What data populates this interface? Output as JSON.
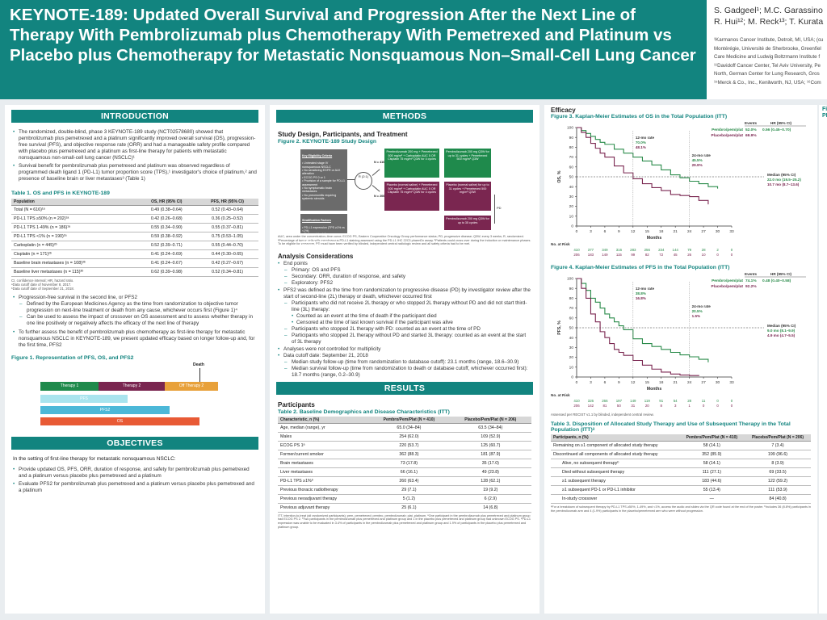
{
  "header": {
    "title": "KEYNOTE-189: Updated Overall Survival and Progression After the Next Line of Therapy With Pembrolizumab plus Chemotherapy With Pemetrexed and Platinum vs Placebo plus Chemotherapy for Metastatic Nonsquamous Non–Small-Cell Lung Cancer",
    "authors_line1": "S. Gadgeel¹; M.C. Garassino",
    "authors_line2": "R. Hui¹²; M. Reck¹³; T. Kurata",
    "affiliations": [
      "¹Karmanos Cancer Institute, Detroit, MI, USA; (cu",
      "Montérégie, Université de Sherbrooke, Greenfiel",
      "Care Medicine and Ludwig Boltzmann Institute f",
      "¹¹Davidoff Cancer Center, Tel Aviv University, Pe",
      "North, German Center for Lung Research, Gros",
      "¹⁵Merck & Co., Inc., Kenilworth, NJ, USA; ¹⁶Com"
    ],
    "colors": {
      "brand": "#12847f",
      "pembro": "#2a8b4a",
      "placebo": "#7a2650"
    }
  },
  "intro": {
    "heading": "INTRODUCTION",
    "bullets": [
      "The randomized, double-blind, phase 3 KEYNOTE-189 study (NCT02578680) showed that pembrolizumab plus pemetrexed and a platinum significantly improved overall survival (OS), progression-free survival (PFS), and objective response rate (ORR) and had a manageable safety profile compared with placebo plus pemetrexed and a platinum as first-line therapy for patients with metastatic nonsquamous non-small-cell lung cancer (NSCLC)¹",
      "Survival benefit for pembrolizumab plus pemetrexed and platinum was observed regardless of programmed death ligand 1 (PD-L1) tumor proportion score (TPS),¹ investigator's choice of platinum,² and presence of baseline brain or liver metastases³ (Table 1)"
    ],
    "table1_caption": "Table 1. OS and PFS in KEYNOTE-189",
    "table1_headers": [
      "Population",
      "OS, HR (95% CI)",
      "PFS, HR (95% CI)"
    ],
    "table1_rows": [
      [
        "Total (N = 616)¹ᵃ",
        "0.49 (0.38–0.64)",
        "0.52 (0.43–0.64)"
      ],
      [
        "PD-L1 TPS ≥50% (n = 202)¹ᵃ",
        "0.42 (0.26–0.68)",
        "0.36 (0.25–0.52)"
      ],
      [
        "PD-L1 TPS 1-49% (n = 186)¹ᵃ",
        "0.55 (0.34–0.90)",
        "0.55 (0.37–0.81)"
      ],
      [
        "PD-L1 TPS <1% (n = 190)¹ᵃ",
        "0.59 (0.38–0.92)",
        "0.75 (0.53–1.05)"
      ],
      [
        "Carboplatin (n = 445)²ᵇ",
        "0.52 (0.39–0.71)",
        "0.55 (0.44–0.70)"
      ],
      [
        "Cisplatin (n = 171)²ᵇ",
        "0.41 (0.24–0.69)",
        "0.44 (0.30–0.65)"
      ],
      [
        "Baseline brain metastases (n = 108)³ᵇ",
        "0.41 (0.24–0.67)",
        "0.42 (0.27–0.67)"
      ],
      [
        "Baseline liver metastases (n = 115)³ᵇ",
        "0.62 (0.39–0.98)",
        "0.52 (0.34–0.81)"
      ]
    ],
    "table1_notes": [
      "CI, confidence interval; HR, hazard ratio.",
      "ᵃData cutoff date of November 8, 2017.",
      "ᵇData cutoff date of September 21, 2018."
    ],
    "pfs2_bullet": "Progression-free survival in the second line, or PFS2",
    "pfs2_dashes": [
      "Defined by the European Medicines Agency as the time from randomization to objective tumor progression on next-line treatment or death from any cause, whichever occurs first (Figure 1)⁴",
      "Can be used to assess the impact of crossover on OS assessment and to assess whether therapy in one line positively or negatively affects the efficacy of the next line of therapy"
    ],
    "further_bullet": "To further assess the benefit of pembrolizumab plus chemotherapy as first-line therapy for metastatic nonsquamous NSCLC in KEYNOTE-189, we present updated efficacy based on longer follow-up and, for the first time, PFS2",
    "fig1_caption": "Figure 1. Representation of PFS, OS, and PFS2",
    "fig1_labels": {
      "death": "Death",
      "therapy1": "Therapy 1",
      "therapy2": "Therapy 2",
      "therapy3": "Off Therapy 2",
      "pfs": "PFS",
      "pfs2": "PFS2",
      "os": "OS"
    }
  },
  "objectives": {
    "heading": "OBJECTIVES",
    "lead": "In the setting of first-line therapy for metastatic nonsquamous NSCLC:",
    "bullets": [
      "Provide updated OS, PFS, ORR, duration of response, and safety for pembrolizumab plus pemetrexed and a platinum versus placebo plus pemetrexed and a platinum",
      "Evaluate PFS2 for pembrolizumab plus pemetrexed and a platinum versus placebo plus pemetrexed and a platinum"
    ]
  },
  "methods": {
    "heading": "METHODS",
    "design_heading": "Study Design, Participants, and Treatment",
    "fig2_caption": "Figure 2. KEYNOTE-189 Study Design",
    "design_boxes": {
      "eligibility": "Key Eligibility Criteria",
      "eligibility_items": "• Untreated stage IV nonsquamous NSCLC\n• No sensitizing EGFR or ALK alteration\n• ECOG PS 0 or 1\n• Provision of a sample for PD-L1 assessment\n• No symptomatic brain metastases\n• No pneumonitis requiring systemic steroids",
      "stratification": "Stratification Factors",
      "stratification_items": "• PD-L1 expression (TPS ≥1% vs <1%)\n• Platinum (cisplatin vs carboplatin)\n• Smoking history (never vs former/current)",
      "randomize": "R (2:1)",
      "n_top": "N = 410",
      "n_bottom": "N = 206",
      "arm1_induction": "Pembrolizumab 200 mg + Pemetrexed 500 mg/m² + Carboplatin AUC 5 OR Cisplatin 75 mg/m² Q3W for 4 cycles",
      "arm1_maint": "Pembrolizumab 200 mg Q3W for up to 31 cycles + Pemetrexed 500 mg/m² Q3W",
      "arm2_induction": "Placebo (normal saline) + Pemetrexed 500 mg/m² + Carboplatin AUC 5 OR Cisplatin 75 mg/m² Q3W for 4 cycles",
      "arm2_maint": "Placebo (normal saline) for up to 31 cycles + Pemetrexed 500 mg/m² Q3W",
      "crossover": "Pembrolizumab 200 mg Q3W for up to 35 cycles",
      "pd_label": "PD"
    },
    "fig2_notes": "AUC, area under the concentration–time curve; ECOG PS, Eastern Cooperative Oncology Group performance status; PD, progressive disease; Q3W, every 3 weeks; R, randomized. ᵃPercentage of tumor cells with membranous PD-L1 staining assessed using the PD-L1 IHC 22C3 pharmDx assay. ᵇPatients could cross over during the induction or maintenance phases. To be eligible for crossover, PD must have been verified by blinded, independent central radiologic review and all safety criteria had to be met.",
    "analysis_heading": "Analysis Considerations",
    "endpoints_bullet": "End points",
    "endpoints": [
      "Primary: OS and PFS",
      "Secondary: ORR, duration of response, and safety",
      "Exploratory: PFS2"
    ],
    "pfs2_def": "PFS2 was defined as the time from randomization to progressive disease (PD) by investigator review after the start of second-line (2L) therapy or death, whichever occurred first",
    "pfs2_sub": [
      "Participants who did not receive 2L therapy or who stopped 2L therapy without PD and did not start third-line (3L) therapy:"
    ],
    "pfs2_sub2": [
      "Counted as an event at the time of death if the participant died",
      "Censored at the time of last known survival if the participant was alive"
    ],
    "pfs2_sub3": [
      "Participants who stopped 2L therapy with PD: counted as an event at the time of PD",
      "Participants who stopped 2L therapy without PD and started 3L therapy: counted as an event at the start of 3L therapy"
    ],
    "multiplicity": "Analyses were not controlled for multiplicity",
    "cutoff": "Data cutoff date: September 21, 2018",
    "cutoff_sub": [
      "Median study follow-up (time from randomization to database cutoff): 23.1 months (range, 18.6–30.9)",
      "Median survival follow-up (time from randomization to death or database cutoff, whichever occurred first): 18.7 months (range, 0.2–30.9)"
    ]
  },
  "results": {
    "heading": "RESULTS",
    "participants_heading": "Participants",
    "table2_caption": "Table 2. Baseline Demographics and Disease Characteristics (ITT)",
    "table2_headers": [
      "Characteristic, n (%)",
      "Pembro/Pem/Plat (N = 410)",
      "Placebo/Pem/Plat (N = 206)"
    ],
    "table2_rows": [
      [
        "Age, median (range), yr",
        "65.0 (34–84)",
        "63.5 (34–84)"
      ],
      [
        "Males",
        "254 (62.0)",
        "109 (52.9)"
      ],
      [
        "ECOG PS 1ᵃ",
        "220 (53.7)",
        "125 (60.7)"
      ],
      [
        "Former/current smoker",
        "362 (88.3)",
        "181 (87.9)"
      ],
      [
        "Brain metastases",
        "73 (17.8)",
        "35 (17.0)"
      ],
      [
        "Liver metastases",
        "66 (16.1)",
        "49 (23.8)"
      ],
      [
        "PD-L1 TPS ≥1%ᵇ",
        "260 (63.4)",
        "128 (62.1)"
      ],
      [
        "Previous thoracic radiotherapy",
        "29 (7.1)",
        "19 (9.2)"
      ],
      [
        "Previous neoadjuvant therapy",
        "5 (1.2)",
        "6 (2.9)"
      ],
      [
        "Previous adjuvant therapy",
        "25 (6.1)",
        "14 (6.8)"
      ]
    ],
    "table2_notes": "ITT, intention-to-treat (all randomized participants); pem, pemetrexed; pembro, pembrolizumab; plat, platinum. ᵃOne participant in the pembrolizumab plus pemetrexed and platinum group had ECOG PS 2. ᵇTwo participants in the pembrolizumab plus pemetrexed and platinum group and 1 in the placebo plus pemetrexed and platinum group had unknown ECOG PS. ᶜPD-L1 expression was unable to be evaluated in 3.4% of participants in the pembrolizumab plus pemetrexed and platinum group and 1.9% of participants in the placebo plus pemetrexed and platinum group."
  },
  "efficacy": {
    "heading": "Efficacy",
    "fig3_caption": "Figure 3. Kaplan-Meier Estimates of OS in the Total Population (ITT)",
    "fig4_caption": "Figure 4. Kaplan-Meier Estimates of PFS in the Total Population (ITT)",
    "fig4_note": "Assessed per RECIST v1.1 by blinded, independent central review.",
    "table3_caption": "Table 3. Disposition of Allocated Study Therapy and Use of Subsequent Therapy in the Total Population (ITT)ᵃ",
    "table3_headers": [
      "Participants, n (%)",
      "Pembro/Pem/Plat (N = 410)",
      "Placebo/Pem/Plat (N = 206)"
    ],
    "table3_rows": [
      [
        "Remaining on ≥1 component of allocated study therapy",
        "58 (14.1)",
        "7 (3.4)"
      ],
      [
        "Discontinued all components of allocated study therapy",
        "352 (85.9)",
        "199 (96.6)"
      ],
      [
        "Alive, no subsequent therapyᵇ",
        "58 (14.1)",
        "8 (3.9)"
      ],
      [
        "Died without subsequent therapy",
        "111 (27.1)",
        "69 (33.5)"
      ],
      [
        "≥1 subsequent therapy",
        "183 (44.6)",
        "122 (59.2)"
      ],
      [
        "≥1 subsequent PD-1 or PD-L1 inhibitor",
        "55 (13.4)",
        "111 (53.9)"
      ],
      [
        "In-study crossover",
        "—",
        "84 (40.8)"
      ]
    ],
    "table3_notes": "ᵃFor a breakdown of subsequent therapy by PD-L1 TPS ≥50%, 1-49%, and <1%, access the audio and slides via the QR code found at the end of the poster. ᵇIncludes 36 (8.8%) participants in the pembrolizumab arm and 4 (1.9%) participants in the placebo/pemetrexed arm who were without progression.",
    "right_partial": [
      "Fi",
      "PF"
    ]
  },
  "chart_data": [
    {
      "type": "line",
      "title": "Figure 3. Kaplan-Meier Estimates of OS in the Total Population (ITT)",
      "xlabel": "Months",
      "ylabel": "OS, %",
      "xlim": [
        0,
        33
      ],
      "ylim": [
        0,
        100
      ],
      "xticks": [
        0,
        3,
        6,
        9,
        12,
        15,
        18,
        21,
        24,
        27,
        30,
        33
      ],
      "yticks": [
        0,
        10,
        20,
        30,
        40,
        50,
        60,
        70,
        80,
        90,
        100
      ],
      "legend_header": [
        "Events",
        "HR (95% CI)"
      ],
      "series": [
        {
          "name": "Pembro/pem/plat",
          "events": "52.0%",
          "hr": "0.56 (0.45–0.70)",
          "x": [
            0,
            1,
            2,
            3,
            4,
            5,
            6,
            8,
            10,
            12,
            14,
            16,
            18,
            20,
            22,
            24,
            26,
            28,
            30
          ],
          "y": [
            100,
            97,
            94,
            91,
            88,
            85,
            83,
            78,
            74,
            70,
            66,
            62,
            57,
            52,
            49,
            45.5,
            43,
            40,
            38
          ]
        },
        {
          "name": "Placebo/pem/plat",
          "events": "69.9%",
          "hr": "",
          "x": [
            0,
            1,
            2,
            3,
            4,
            5,
            6,
            8,
            10,
            12,
            14,
            16,
            18,
            20,
            22,
            24,
            26,
            28
          ],
          "y": [
            100,
            95,
            90,
            84,
            79,
            74,
            70,
            61,
            54,
            48,
            43,
            39,
            36,
            32,
            31,
            29.9,
            26,
            22
          ]
        }
      ],
      "annotations": [
        "12-mo rate",
        "70.0%",
        "48.1%",
        "24-mo rate",
        "45.5%",
        "29.9%",
        "Median (95% CI)",
        "22.0 mo (19.5–25.2)",
        "10.7 mo (8.7–13.6)"
      ],
      "at_risk_label": "No. at Risk",
      "at_risk": [
        [
          "410",
          "377",
          "349",
          "316",
          "283",
          "256",
          "234",
          "144",
          "79",
          "28",
          "2",
          "0"
        ],
        [
          "206",
          "183",
          "149",
          "115",
          "99",
          "82",
          "72",
          "45",
          "26",
          "10",
          "0",
          "0"
        ]
      ]
    },
    {
      "type": "line",
      "title": "Figure 4. Kaplan-Meier Estimates of PFS in the Total Population (ITT)",
      "xlabel": "Months",
      "ylabel": "PFS, %",
      "xlim": [
        0,
        33
      ],
      "ylim": [
        0,
        100
      ],
      "xticks": [
        0,
        3,
        6,
        9,
        12,
        15,
        18,
        21,
        24,
        27,
        30,
        33
      ],
      "yticks": [
        0,
        10,
        20,
        30,
        40,
        50,
        60,
        70,
        80,
        90,
        100
      ],
      "legend_header": [
        "Events",
        "HR (95% CI)"
      ],
      "series": [
        {
          "name": "Pembro/pem/plat",
          "events": "74.1%",
          "hr": "0.48 (0.40–0.58)",
          "x": [
            0,
            1,
            2,
            3,
            4,
            5,
            6,
            7,
            8,
            9,
            10,
            12,
            14,
            16,
            18,
            20,
            22,
            24,
            26,
            28
          ],
          "y": [
            100,
            95,
            88,
            80,
            76,
            70,
            64,
            60,
            56,
            52,
            48,
            38.8,
            34,
            31,
            28,
            25,
            22.5,
            20.5,
            18,
            15
          ]
        },
        {
          "name": "Placebo/pem/plat",
          "events": "92.2%",
          "hr": "",
          "x": [
            0,
            1,
            2,
            3,
            4,
            5,
            6,
            7,
            8,
            9,
            10,
            12,
            14,
            16,
            18,
            20,
            22,
            24,
            26
          ],
          "y": [
            100,
            90,
            80,
            64,
            56,
            46,
            40,
            34,
            28,
            25,
            22,
            16.8,
            12,
            8,
            5,
            3,
            2,
            1.5,
            1
          ]
        }
      ],
      "annotations": [
        "12-mo rate",
        "38.8%",
        "16.8%",
        "24-mo rate",
        "20.5%",
        "1.5%",
        "Median (95% CI)",
        "9.0 mo (8.1–9.9)",
        "4.9 mo (4.7–5.5)"
      ],
      "at_risk_label": "No. at Risk",
      "at_risk": [
        [
          "410",
          "326",
          "266",
          "197",
          "149",
          "119",
          "91",
          "54",
          "28",
          "11",
          "0",
          "0"
        ],
        [
          "206",
          "142",
          "81",
          "50",
          "31",
          "20",
          "8",
          "3",
          "1",
          "0",
          "0",
          "0"
        ]
      ]
    }
  ]
}
